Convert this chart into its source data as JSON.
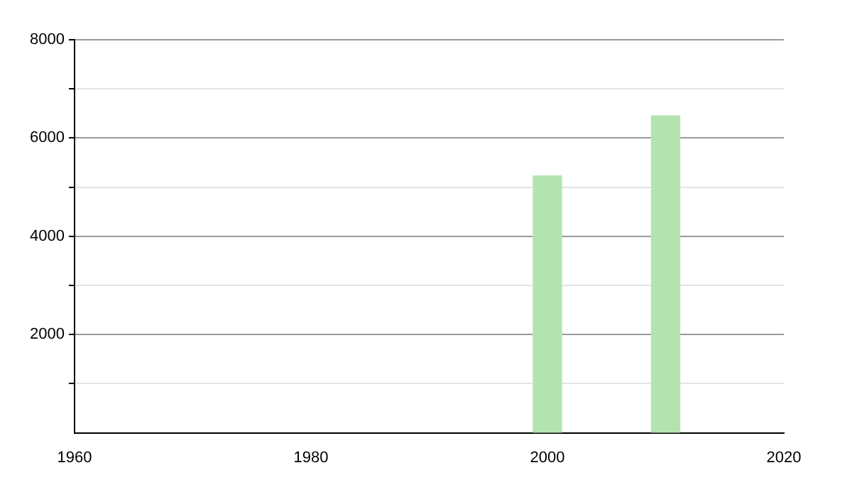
{
  "chart_data": {
    "type": "bar",
    "x": [
      2000,
      2010
    ],
    "values": [
      5230,
      6450
    ],
    "color": "#b3e4b0",
    "xlim": [
      1960,
      2020
    ],
    "xticks": [
      1960,
      1980,
      2000,
      2020
    ],
    "ylim": [
      0,
      8000
    ],
    "yticks": [
      {
        "value": 1000,
        "label": null
      },
      2000,
      {
        "value": 3000,
        "label": null
      },
      4000,
      {
        "value": 5000,
        "label": null
      },
      6000,
      {
        "value": 7000,
        "label": null
      },
      8000
    ],
    "grid": "y",
    "legend": false
  }
}
